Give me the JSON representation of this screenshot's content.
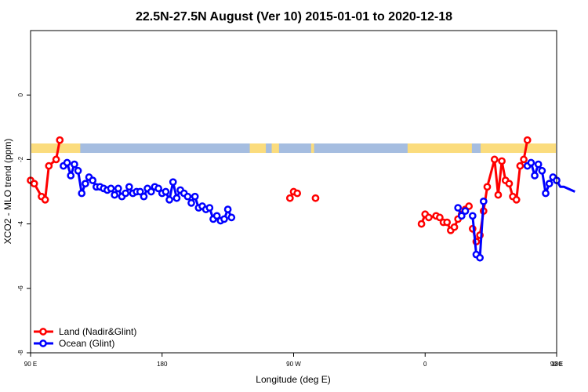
{
  "chart_data": {
    "type": "line",
    "title": "22.5N-27.5N August (Ver 10)   2015-01-01 to 2020-12-18",
    "xlabel": "Longitude (deg E)",
    "ylabel": "XCO2 - MLO trend (ppm)",
    "xlim": [
      90,
      450
    ],
    "ylim": [
      -8,
      2
    ],
    "x_ticks": [
      {
        "value": 90,
        "label": "90 E"
      },
      {
        "value": 180,
        "label": "180"
      },
      {
        "value": 270,
        "label": "90 W"
      },
      {
        "value": 360,
        "label": "0"
      },
      {
        "value": 450,
        "label": "90 E"
      },
      {
        "value": 540,
        "label": "180"
      }
    ],
    "y_ticks": [
      {
        "value": 0,
        "label": "0"
      },
      {
        "value": -2,
        "label": "-2"
      },
      {
        "value": -4,
        "label": "-4"
      },
      {
        "value": -6,
        "label": "-6"
      },
      {
        "value": -8,
        "label": "-8"
      }
    ],
    "land_strip": {
      "y_center": -1.65,
      "ocean_color": "#a5bde0",
      "land_color": "#fbdc7d",
      "land_ranges": [
        [
          62,
          124
        ],
        [
          240,
          251
        ],
        [
          255,
          260
        ],
        [
          282,
          284
        ],
        [
          348,
          392
        ],
        [
          398,
          452
        ]
      ]
    },
    "series": [
      {
        "name": "Land (Nadir&Glint)",
        "color": "#ff0000",
        "segments": [
          [
            [
              90,
              -2.65
            ],
            [
              92.5,
              -2.75
            ],
            [
              97.5,
              -3.15
            ],
            [
              100,
              -3.25
            ],
            [
              102.5,
              -2.2
            ],
            [
              107.5,
              -2.0
            ],
            [
              110,
              -1.4
            ]
          ],
          [
            [
              267.5,
              -3.2
            ],
            [
              270,
              -3.0
            ],
            [
              272.5,
              -3.05
            ]
          ],
          [
            [
              285,
              -3.2
            ]
          ],
          [
            [
              357.5,
              -4.0
            ],
            [
              360,
              -3.7
            ],
            [
              362.5,
              -3.8
            ],
            [
              367.5,
              -3.75
            ],
            [
              370,
              -3.8
            ],
            [
              372.5,
              -3.95
            ],
            [
              375,
              -3.95
            ],
            [
              377.5,
              -4.2
            ],
            [
              380,
              -4.1
            ],
            [
              382.5,
              -3.85
            ],
            [
              385,
              -3.7
            ],
            [
              387.5,
              -3.55
            ],
            [
              390,
              -3.45
            ]
          ],
          [
            [
              392.5,
              -4.15
            ],
            [
              395,
              -4.55
            ],
            [
              397.5,
              -4.35
            ],
            [
              400,
              -3.6
            ],
            [
              402.5,
              -2.85
            ],
            [
              407.5,
              -2.0
            ],
            [
              410,
              -3.1
            ],
            [
              412.5,
              -2.05
            ],
            [
              415,
              -2.65
            ],
            [
              417.5,
              -2.75
            ],
            [
              420,
              -3.15
            ],
            [
              422.5,
              -3.25
            ],
            [
              425,
              -2.2
            ],
            [
              427.5,
              -2.0
            ],
            [
              430,
              -1.4
            ]
          ]
        ]
      },
      {
        "name": "Ocean (Glint)",
        "color": "#0000ff",
        "segments": [
          [
            [
              112.5,
              -2.2
            ],
            [
              115,
              -2.1
            ],
            [
              117.5,
              -2.5
            ],
            [
              120,
              -2.15
            ],
            [
              122.5,
              -2.35
            ],
            [
              125,
              -3.05
            ],
            [
              127.5,
              -2.75
            ],
            [
              130,
              -2.55
            ],
            [
              132.5,
              -2.65
            ],
            [
              135,
              -2.85
            ],
            [
              137.5,
              -2.85
            ],
            [
              140,
              -2.9
            ],
            [
              142.5,
              -2.95
            ],
            [
              145,
              -2.9
            ],
            [
              147.5,
              -3.1
            ],
            [
              150,
              -2.9
            ],
            [
              152.5,
              -3.15
            ],
            [
              155,
              -3.05
            ],
            [
              157.5,
              -2.85
            ],
            [
              160,
              -3.05
            ],
            [
              162.5,
              -3.0
            ],
            [
              165,
              -3.0
            ],
            [
              167.5,
              -3.15
            ],
            [
              170,
              -2.9
            ],
            [
              172.5,
              -3.0
            ],
            [
              175,
              -2.85
            ],
            [
              177.5,
              -2.9
            ],
            [
              180,
              -3.05
            ],
            [
              182.5,
              -3.0
            ],
            [
              185,
              -3.25
            ],
            [
              187.5,
              -2.7
            ],
            [
              190,
              -3.2
            ],
            [
              192.5,
              -2.95
            ],
            [
              195,
              -3.05
            ],
            [
              197.5,
              -3.15
            ],
            [
              200,
              -3.35
            ],
            [
              202.5,
              -3.15
            ],
            [
              205,
              -3.5
            ],
            [
              207.5,
              -3.45
            ],
            [
              210,
              -3.55
            ],
            [
              212.5,
              -3.5
            ],
            [
              215,
              -3.85
            ],
            [
              217.5,
              -3.75
            ],
            [
              220,
              -3.9
            ],
            [
              222.5,
              -3.85
            ],
            [
              225,
              -3.55
            ],
            [
              227.5,
              -3.8
            ]
          ],
          [
            [
              382.5,
              -3.5
            ],
            [
              385,
              -3.75
            ],
            [
              387.5,
              -3.6
            ]
          ],
          [
            [
              392.5,
              -3.75
            ],
            [
              395,
              -4.95
            ],
            [
              397.5,
              -5.05
            ],
            [
              400,
              -3.3
            ]
          ],
          [
            [
              430,
              -2.2
            ],
            [
              432.5,
              -2.1
            ],
            [
              435,
              -2.5
            ],
            [
              437.5,
              -2.15
            ],
            [
              440,
              -2.35
            ],
            [
              442.5,
              -3.05
            ],
            [
              445,
              -2.75
            ],
            [
              447.5,
              -2.55
            ],
            [
              450,
              -2.65
            ],
            [
              452.5,
              -2.85
            ],
            [
              455,
              -2.85
            ],
            [
              457.5,
              -2.9
            ],
            [
              460,
              -2.95
            ],
            [
              462.5,
              -3.0
            ]
          ]
        ]
      }
    ],
    "legend": {
      "position": "bottom-left",
      "entries": [
        {
          "label": "Land (Nadir&Glint)",
          "color": "#ff0000"
        },
        {
          "label": "Ocean (Glint)",
          "color": "#0000ff"
        }
      ]
    },
    "grid": false
  }
}
